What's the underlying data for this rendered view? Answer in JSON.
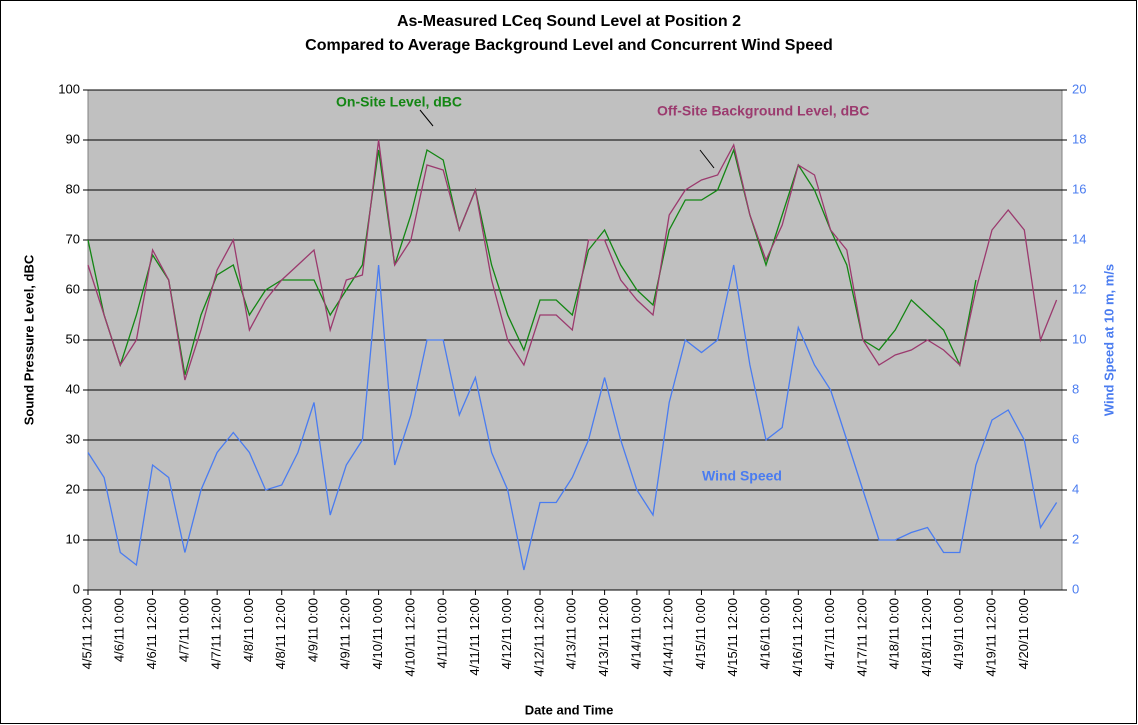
{
  "chart_data": {
    "type": "line",
    "title": [
      "As-Measured LCeq Sound Level at Position 2",
      "Compared to Average Background Level and Concurrent Wind Speed"
    ],
    "x_label": "Date and Time",
    "y_label": "Sound Pressure Level, dBC",
    "y2_label": "Wind Speed at 10 m, m/s",
    "x": [
      "4/5/11 12:00",
      "4/5/11 18:00",
      "4/6/11 0:00",
      "4/6/11 6:00",
      "4/6/11 12:00",
      "4/6/11 18:00",
      "4/7/11 0:00",
      "4/7/11 6:00",
      "4/7/11 12:00",
      "4/7/11 18:00",
      "4/8/11 0:00",
      "4/8/11 6:00",
      "4/8/11 12:00",
      "4/8/11 18:00",
      "4/9/11 0:00",
      "4/9/11 6:00",
      "4/9/11 12:00",
      "4/9/11 18:00",
      "4/10/11 0:00",
      "4/10/11 6:00",
      "4/10/11 12:00",
      "4/10/11 18:00",
      "4/11/11 0:00",
      "4/11/11 6:00",
      "4/11/11 12:00",
      "4/11/11 18:00",
      "4/12/11 0:00",
      "4/12/11 6:00",
      "4/12/11 12:00",
      "4/12/11 18:00",
      "4/13/11 0:00",
      "4/13/11 6:00",
      "4/13/11 12:00",
      "4/13/11 18:00",
      "4/14/11 0:00",
      "4/14/11 6:00",
      "4/14/11 12:00",
      "4/14/11 18:00",
      "4/15/11 0:00",
      "4/15/11 6:00",
      "4/15/11 12:00",
      "4/15/11 18:00",
      "4/16/11 0:00",
      "4/16/11 6:00",
      "4/16/11 12:00",
      "4/16/11 18:00",
      "4/17/11 0:00",
      "4/17/11 6:00",
      "4/17/11 12:00",
      "4/17/11 18:00",
      "4/18/11 0:00",
      "4/18/11 6:00",
      "4/18/11 12:00",
      "4/18/11 18:00",
      "4/19/11 0:00",
      "4/19/11 6:00",
      "4/19/11 12:00",
      "4/19/11 18:00",
      "4/20/11 0:00",
      "4/20/11 6:00",
      "4/20/11 12:00"
    ],
    "series": [
      {
        "name": "On-Site Level, dBC",
        "color": "#138613",
        "values": [
          70,
          55,
          45,
          55,
          67,
          62,
          43,
          55,
          63,
          65,
          55,
          60,
          62,
          62,
          62,
          55,
          60,
          65,
          88,
          65,
          75,
          88,
          86,
          72,
          80,
          65,
          55,
          48,
          58,
          58,
          55,
          68,
          72,
          65,
          60,
          57,
          72,
          78,
          78,
          80,
          88,
          75,
          65,
          75,
          85,
          80,
          72,
          65,
          50,
          48,
          52,
          58,
          55,
          52,
          45,
          62,
          null,
          null,
          null,
          null,
          null
        ]
      },
      {
        "name": "Off-Site Background Level, dBC",
        "color": "#9b3a6e",
        "values": [
          65,
          55,
          45,
          50,
          68,
          62,
          42,
          52,
          64,
          70,
          52,
          58,
          62,
          65,
          68,
          52,
          62,
          63,
          90,
          65,
          70,
          85,
          84,
          72,
          80,
          62,
          50,
          45,
          55,
          55,
          52,
          70,
          70,
          62,
          58,
          55,
          75,
          80,
          82,
          83,
          89,
          75,
          66,
          73,
          85,
          83,
          72,
          68,
          50,
          45,
          47,
          48,
          50,
          48,
          45,
          60,
          72,
          76,
          72,
          50,
          58
        ]
      },
      {
        "name": "Wind Speed",
        "color": "#4a7cf0",
        "axis": "y2",
        "values": [
          5.5,
          4.5,
          1.5,
          1,
          5,
          4.5,
          1.5,
          4,
          5.5,
          6.3,
          5.5,
          4,
          4.2,
          5.5,
          7.5,
          3,
          5,
          6,
          13,
          5,
          7,
          10,
          10,
          7,
          8.5,
          5.5,
          4,
          0.8,
          3.5,
          3.5,
          4.5,
          6,
          8.5,
          6,
          4,
          3,
          7.5,
          10,
          9.5,
          10,
          13,
          9,
          6,
          6.5,
          10.5,
          9,
          8,
          6,
          4,
          2,
          2,
          2.3,
          2.5,
          1.5,
          1.5,
          5,
          6.8,
          7.2,
          6,
          2.5,
          3.5
        ]
      }
    ],
    "xlim": [
      "4/5/11 12:00",
      "4/20/11 14:00"
    ],
    "xticks": [
      "4/5/11 12:00",
      "4/6/11 0:00",
      "4/6/11 12:00",
      "4/7/11 0:00",
      "4/7/11 12:00",
      "4/8/11 0:00",
      "4/8/11 12:00",
      "4/9/11 0:00",
      "4/9/11 12:00",
      "4/10/11 0:00",
      "4/10/11 12:00",
      "4/11/11 0:00",
      "4/11/11 12:00",
      "4/12/11 0:00",
      "4/12/11 12:00",
      "4/13/11 0:00",
      "4/13/11 12:00",
      "4/14/11 0:00",
      "4/14/11 12:00",
      "4/15/11 0:00",
      "4/15/11 12:00",
      "4/16/11 0:00",
      "4/16/11 12:00",
      "4/17/11 0:00",
      "4/17/11 12:00",
      "4/18/11 0:00",
      "4/18/11 12:00",
      "4/19/11 0:00",
      "4/19/11 12:00",
      "4/20/11 0:00"
    ],
    "ylim": [
      0,
      100
    ],
    "yticks": [
      0,
      10,
      20,
      30,
      40,
      50,
      60,
      70,
      80,
      90,
      100
    ],
    "y2lim": [
      0,
      20
    ],
    "y2ticks": [
      0,
      2,
      4,
      6,
      8,
      10,
      12,
      14,
      16,
      18,
      20
    ],
    "grid": true
  }
}
